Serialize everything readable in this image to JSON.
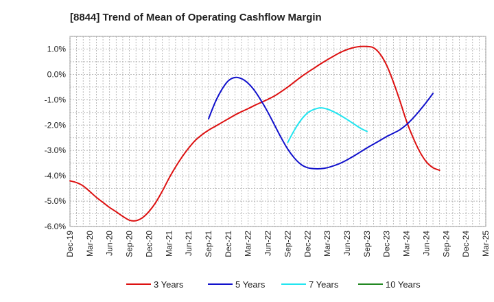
{
  "chart_data": {
    "type": "line",
    "title": "[8844]  Trend of Mean of Operating Cashflow Margin",
    "xlabel": "",
    "ylabel": "",
    "x_tick_labels": [
      "Dec-19",
      "Mar-20",
      "Jun-20",
      "Sep-20",
      "Dec-20",
      "Mar-21",
      "Jun-21",
      "Sep-21",
      "Dec-21",
      "Mar-22",
      "Jun-22",
      "Sep-22",
      "Dec-22",
      "Mar-23",
      "Jun-23",
      "Sep-23",
      "Dec-23",
      "Mar-24",
      "Jun-24",
      "Sep-24",
      "Dec-24",
      "Mar-25"
    ],
    "y_tick_labels": [
      "1.0%",
      "0.0%",
      "-1.0%",
      "-2.0%",
      "-3.0%",
      "-4.0%",
      "-5.0%",
      "-6.0%"
    ],
    "y_ticks": [
      1,
      0,
      -1,
      -2,
      -3,
      -4,
      -5,
      -6
    ],
    "ylim": [
      -6.0,
      1.5
    ],
    "grid": true,
    "legend_position": "bottom",
    "series": [
      {
        "name": "3 Years",
        "color": "#dd1111",
        "points": [
          [
            "Dec-19",
            -4.2
          ],
          [
            "Jan-20",
            -4.27
          ],
          [
            "Feb-20",
            -4.4
          ],
          [
            "Mar-20",
            -4.62
          ],
          [
            "Apr-20",
            -4.85
          ],
          [
            "May-20",
            -5.05
          ],
          [
            "Jun-20",
            -5.25
          ],
          [
            "Jul-20",
            -5.42
          ],
          [
            "Aug-20",
            -5.6
          ],
          [
            "Sep-20",
            -5.75
          ],
          [
            "Oct-20",
            -5.77
          ],
          [
            "Nov-20",
            -5.65
          ],
          [
            "Dec-20",
            -5.4
          ],
          [
            "Jan-21",
            -5.05
          ],
          [
            "Feb-21",
            -4.6
          ],
          [
            "Mar-21",
            -4.1
          ],
          [
            "Apr-21",
            -3.65
          ],
          [
            "May-21",
            -3.25
          ],
          [
            "Jun-21",
            -2.9
          ],
          [
            "Jul-21",
            -2.6
          ],
          [
            "Aug-21",
            -2.38
          ],
          [
            "Sep-21",
            -2.2
          ],
          [
            "Oct-21",
            -2.05
          ],
          [
            "Nov-21",
            -1.9
          ],
          [
            "Dec-21",
            -1.75
          ],
          [
            "Jan-22",
            -1.6
          ],
          [
            "Feb-22",
            -1.47
          ],
          [
            "Mar-22",
            -1.35
          ],
          [
            "Apr-22",
            -1.22
          ],
          [
            "May-22",
            -1.1
          ],
          [
            "Jun-22",
            -0.98
          ],
          [
            "Jul-22",
            -0.85
          ],
          [
            "Aug-22",
            -0.68
          ],
          [
            "Sep-22",
            -0.5
          ],
          [
            "Oct-22",
            -0.3
          ],
          [
            "Nov-22",
            -0.1
          ],
          [
            "Dec-22",
            0.08
          ],
          [
            "Jan-23",
            0.25
          ],
          [
            "Feb-23",
            0.42
          ],
          [
            "Mar-23",
            0.58
          ],
          [
            "Apr-23",
            0.73
          ],
          [
            "May-23",
            0.87
          ],
          [
            "Jun-23",
            0.98
          ],
          [
            "Jul-23",
            1.06
          ],
          [
            "Aug-23",
            1.1
          ],
          [
            "Sep-23",
            1.1
          ],
          [
            "Oct-23",
            1.05
          ],
          [
            "Nov-23",
            0.8
          ],
          [
            "Dec-23",
            0.35
          ],
          [
            "Jan-24",
            -0.3
          ],
          [
            "Feb-24",
            -1.05
          ],
          [
            "Mar-24",
            -1.85
          ],
          [
            "Apr-24",
            -2.5
          ],
          [
            "May-24",
            -3.05
          ],
          [
            "Jun-24",
            -3.45
          ],
          [
            "Jul-24",
            -3.68
          ],
          [
            "Aug-24",
            -3.78
          ]
        ]
      },
      {
        "name": "5 Years",
        "color": "#1111cc",
        "points": [
          [
            "Sep-21",
            -1.75
          ],
          [
            "Oct-21",
            -1.1
          ],
          [
            "Nov-21",
            -0.6
          ],
          [
            "Dec-21",
            -0.25
          ],
          [
            "Jan-22",
            -0.12
          ],
          [
            "Feb-22",
            -0.17
          ],
          [
            "Mar-22",
            -0.35
          ],
          [
            "Apr-22",
            -0.65
          ],
          [
            "May-22",
            -1.05
          ],
          [
            "Jun-22",
            -1.5
          ],
          [
            "Jul-22",
            -2.0
          ],
          [
            "Aug-22",
            -2.5
          ],
          [
            "Sep-22",
            -2.95
          ],
          [
            "Oct-22",
            -3.3
          ],
          [
            "Nov-22",
            -3.55
          ],
          [
            "Dec-22",
            -3.68
          ],
          [
            "Jan-23",
            -3.72
          ],
          [
            "Feb-23",
            -3.72
          ],
          [
            "Mar-23",
            -3.68
          ],
          [
            "Apr-23",
            -3.6
          ],
          [
            "May-23",
            -3.5
          ],
          [
            "Jun-23",
            -3.37
          ],
          [
            "Jul-23",
            -3.22
          ],
          [
            "Aug-23",
            -3.06
          ],
          [
            "Sep-23",
            -2.9
          ],
          [
            "Oct-23",
            -2.75
          ],
          [
            "Nov-23",
            -2.6
          ],
          [
            "Dec-23",
            -2.45
          ],
          [
            "Jan-24",
            -2.32
          ],
          [
            "Feb-24",
            -2.18
          ],
          [
            "Mar-24",
            -1.98
          ],
          [
            "Apr-24",
            -1.72
          ],
          [
            "May-24",
            -1.42
          ],
          [
            "Jun-24",
            -1.1
          ],
          [
            "Jul-24",
            -0.75
          ]
        ]
      },
      {
        "name": "7 Years",
        "color": "#22e5f0",
        "points": [
          [
            "Sep-22",
            -2.68
          ],
          [
            "Oct-22",
            -2.2
          ],
          [
            "Nov-22",
            -1.8
          ],
          [
            "Dec-22",
            -1.52
          ],
          [
            "Jan-23",
            -1.38
          ],
          [
            "Feb-23",
            -1.32
          ],
          [
            "Mar-23",
            -1.37
          ],
          [
            "Apr-23",
            -1.48
          ],
          [
            "May-23",
            -1.62
          ],
          [
            "Jun-23",
            -1.78
          ],
          [
            "Jul-23",
            -1.95
          ],
          [
            "Aug-23",
            -2.12
          ],
          [
            "Sep-23",
            -2.25
          ]
        ]
      },
      {
        "name": "10 Years",
        "color": "#228822",
        "points": []
      }
    ]
  }
}
